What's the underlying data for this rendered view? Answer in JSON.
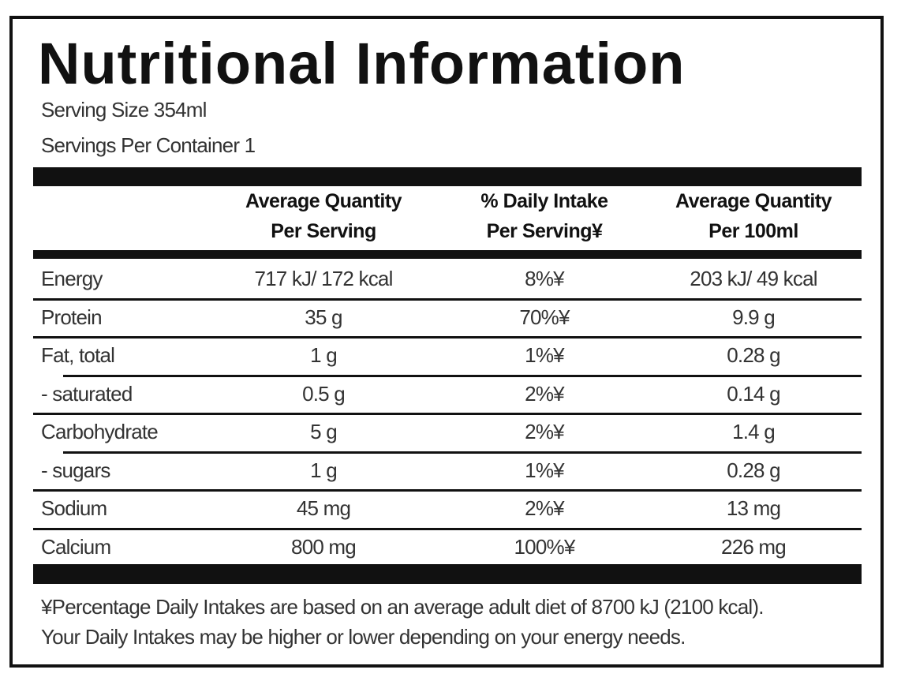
{
  "header": {
    "title": "Nutritional Information",
    "serving_size": "Serving Size 354ml",
    "servings_per_container": "Servings Per Container 1"
  },
  "table": {
    "columns": [
      [
        "Average Quantity",
        "Per Serving"
      ],
      [
        "% Daily Intake",
        "Per Serving¥"
      ],
      [
        "Average Quantity",
        "Per 100ml"
      ]
    ],
    "rows": [
      [
        "Energy",
        "717 kJ/ 172 kcal",
        "8%¥",
        "203 kJ/ 49 kcal"
      ],
      [
        "Protein",
        "35 g",
        "70%¥",
        "9.9 g"
      ],
      [
        "Fat, total",
        "1 g",
        "1%¥",
        "0.28 g"
      ],
      [
        "- saturated",
        "0.5 g",
        "2%¥",
        "0.14 g"
      ],
      [
        "Carbohydrate",
        "5 g",
        "2%¥",
        "1.4 g"
      ],
      [
        "- sugars",
        "1 g",
        "1%¥",
        "0.28 g"
      ],
      [
        "Sodium",
        "45 mg",
        "2%¥",
        "13 mg"
      ],
      [
        "Calcium",
        "800 mg",
        "100%¥",
        "226 mg"
      ]
    ]
  },
  "footnote": [
    "¥Percentage Daily Intakes are based on an average adult diet of 8700 kJ (2100 kcal).",
    "Your Daily Intakes may be higher or lower depending on your energy needs."
  ]
}
